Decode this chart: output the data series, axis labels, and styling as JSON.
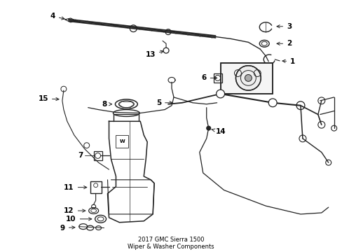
{
  "title": "2017 GMC Sierra 1500\nWiper & Washer Components",
  "bg_color": "#ffffff",
  "line_color": "#222222",
  "label_color": "#000000",
  "fig_width": 4.89,
  "fig_height": 3.6,
  "dpi": 100
}
